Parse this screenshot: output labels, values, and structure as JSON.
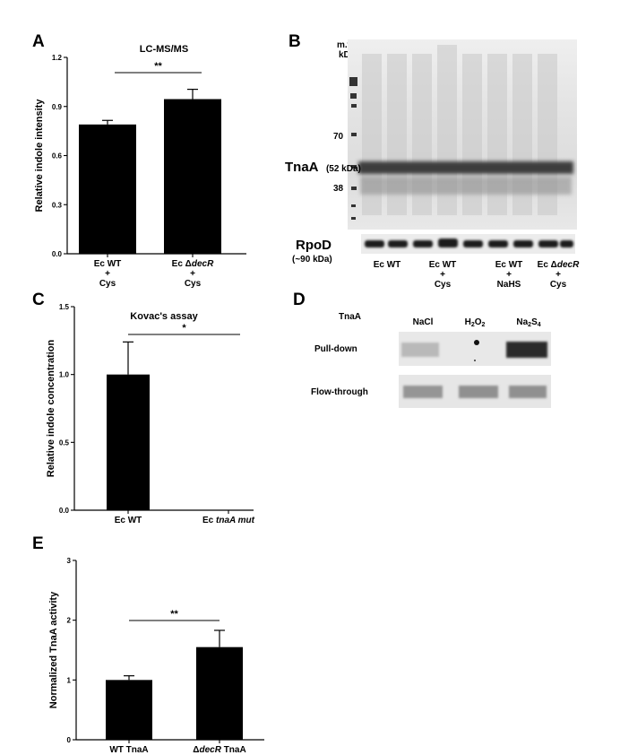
{
  "chart_data": [
    {
      "panel": "A",
      "type": "bar",
      "title": "LC-MS/MS",
      "ylabel": "Relative indole intensity",
      "ylim": [
        0,
        1.2
      ],
      "yticks": [
        "0.0",
        "0.3",
        "0.6",
        "0.9",
        "1.2"
      ],
      "categories": [
        [
          "Ec WT",
          "+",
          "Cys"
        ],
        [
          "Ec ΔdecR",
          "+",
          "Cys"
        ]
      ],
      "values": [
        0.79,
        0.945
      ],
      "errors": [
        0.025,
        0.06
      ],
      "significance": "**"
    },
    {
      "panel": "C",
      "type": "bar",
      "title": "Kovac's assay",
      "ylabel": "Relative indole concentration",
      "ylim": [
        0,
        1.5
      ],
      "yticks": [
        "0.0",
        "0.5",
        "1.0",
        "1.5"
      ],
      "categories": [
        [
          "Ec WT"
        ],
        [
          "Ec tnaA mut"
        ]
      ],
      "values": [
        1.0,
        0.0
      ],
      "errors": [
        0.24,
        0.0
      ],
      "significance": "*"
    },
    {
      "panel": "E",
      "type": "bar",
      "title": "",
      "ylabel": "Normalized TnaA activity",
      "ylim": [
        0,
        3
      ],
      "yticks": [
        "0",
        "1",
        "2",
        "3"
      ],
      "categories": [
        [
          "WT TnaA"
        ],
        [
          "ΔdecR TnaA"
        ]
      ],
      "values": [
        1.0,
        1.55
      ],
      "errors": [
        0.07,
        0.28
      ],
      "significance": "**"
    }
  ],
  "panels": {
    "A": {
      "letter": "A"
    },
    "B": {
      "letter": "B",
      "mw_header_1": "m.w.",
      "mw_header_2": "kDa",
      "mw_markers": [
        "70",
        "38"
      ],
      "band_label": "TnaA",
      "band_kda": "(52 kDa)",
      "loading_label": "RpoD",
      "loading_kda": "(~90 kDa)",
      "lanes": [
        [
          "Ec WT"
        ],
        [
          "Ec WT",
          "+",
          "Cys"
        ],
        [
          "Ec WT",
          "+",
          "NaHS"
        ],
        [
          "Ec ΔdecR",
          "+",
          "Cys"
        ]
      ]
    },
    "C": {
      "letter": "C"
    },
    "D": {
      "letter": "D",
      "header": "TnaA",
      "columns": [
        "NaCl",
        "H2O2",
        "Na2S4"
      ],
      "rows": [
        "Pull-down",
        "Flow-through"
      ]
    },
    "E": {
      "letter": "E"
    }
  }
}
